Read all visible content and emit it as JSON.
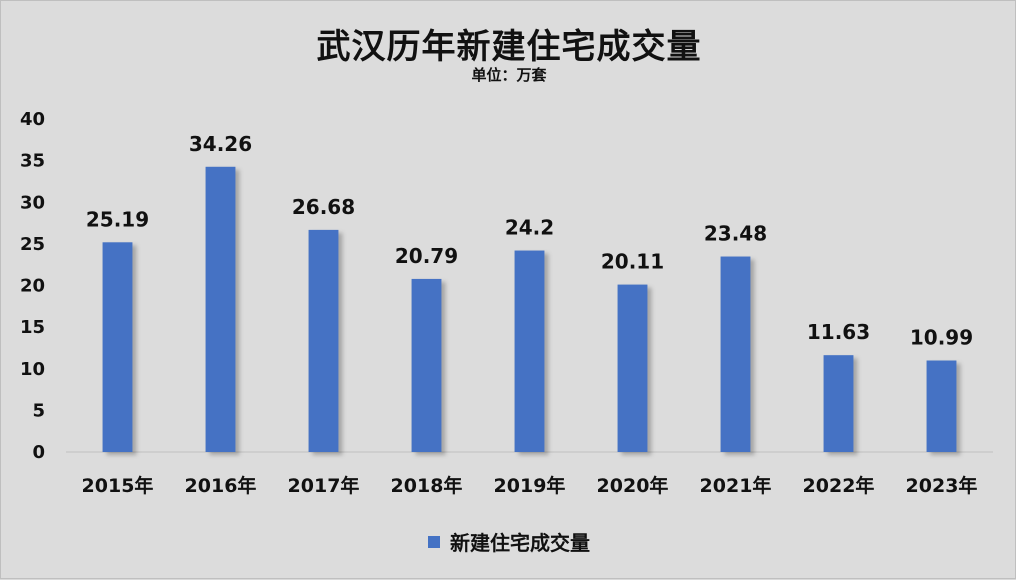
{
  "chart_data": {
    "type": "bar",
    "title": "武汉历年新建住宅成交量",
    "subtitle": "单位：万套",
    "categories": [
      "2015年",
      "2016年",
      "2017年",
      "2018年",
      "2019年",
      "2020年",
      "2021年",
      "2022年",
      "2023年"
    ],
    "series": [
      {
        "name": "新建住宅成交量",
        "values": [
          25.19,
          34.26,
          26.68,
          20.79,
          24.2,
          20.11,
          23.48,
          11.63,
          10.99
        ],
        "labels": [
          "25.19",
          "34.26",
          "26.68",
          "20.79",
          "24.2",
          "20.11",
          "23.48",
          "11.63",
          "10.99"
        ],
        "color": "#4472c4"
      }
    ],
    "ylim": [
      0,
      40
    ],
    "yticks": [
      0,
      5,
      10,
      15,
      20,
      25,
      30,
      35,
      40
    ],
    "grid": false,
    "legend_position": "bottom"
  }
}
